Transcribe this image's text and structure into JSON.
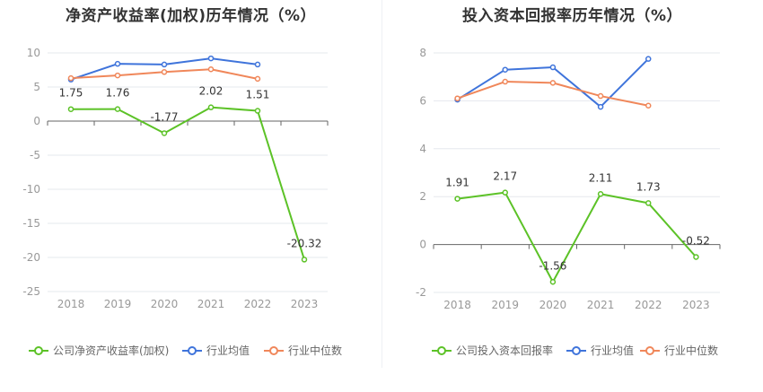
{
  "chart_data": [
    {
      "type": "line",
      "title": "净资产收益率(加权)历年情况（%）",
      "categories": [
        "2018",
        "2019",
        "2020",
        "2021",
        "2022",
        "2023"
      ],
      "ylim": [
        -25,
        10
      ],
      "yticks": [
        10,
        5,
        0,
        -5,
        -10,
        -15,
        -20,
        -25
      ],
      "grid": true,
      "legend_position": "bottom",
      "series": [
        {
          "name": "公司净资产收益率(加权)",
          "color": "#5cc227",
          "values": [
            1.75,
            1.76,
            -1.77,
            2.02,
            1.51,
            -20.32
          ],
          "labels": [
            "1.75",
            "1.76",
            "-1.77",
            "2.02",
            "1.51",
            "-20.32"
          ]
        },
        {
          "name": "行业均值",
          "color": "#3f74db",
          "values": [
            6.1,
            8.4,
            8.3,
            9.2,
            8.3,
            null
          ]
        },
        {
          "name": "行业中位数",
          "color": "#f0875a",
          "values": [
            6.3,
            6.7,
            7.2,
            7.6,
            6.2,
            null
          ]
        }
      ]
    },
    {
      "type": "line",
      "title": "投入资本回报率历年情况（%）",
      "categories": [
        "2018",
        "2019",
        "2020",
        "2021",
        "2022",
        "2023"
      ],
      "ylim": [
        -2,
        8
      ],
      "yticks": [
        8,
        6,
        4,
        2,
        0,
        -2
      ],
      "grid": true,
      "legend_position": "bottom",
      "series": [
        {
          "name": "公司投入资本回报率",
          "color": "#5cc227",
          "values": [
            1.91,
            2.17,
            -1.56,
            2.11,
            1.73,
            -0.52
          ],
          "labels": [
            "1.91",
            "2.17",
            "-1.56",
            "2.11",
            "1.73",
            "-0.52"
          ]
        },
        {
          "name": "行业均值",
          "color": "#3f74db",
          "values": [
            6.05,
            7.3,
            7.4,
            5.75,
            7.75,
            null
          ]
        },
        {
          "name": "行业中位数",
          "color": "#f0875a",
          "values": [
            6.1,
            6.8,
            6.75,
            6.2,
            5.8,
            null
          ]
        }
      ]
    }
  ]
}
